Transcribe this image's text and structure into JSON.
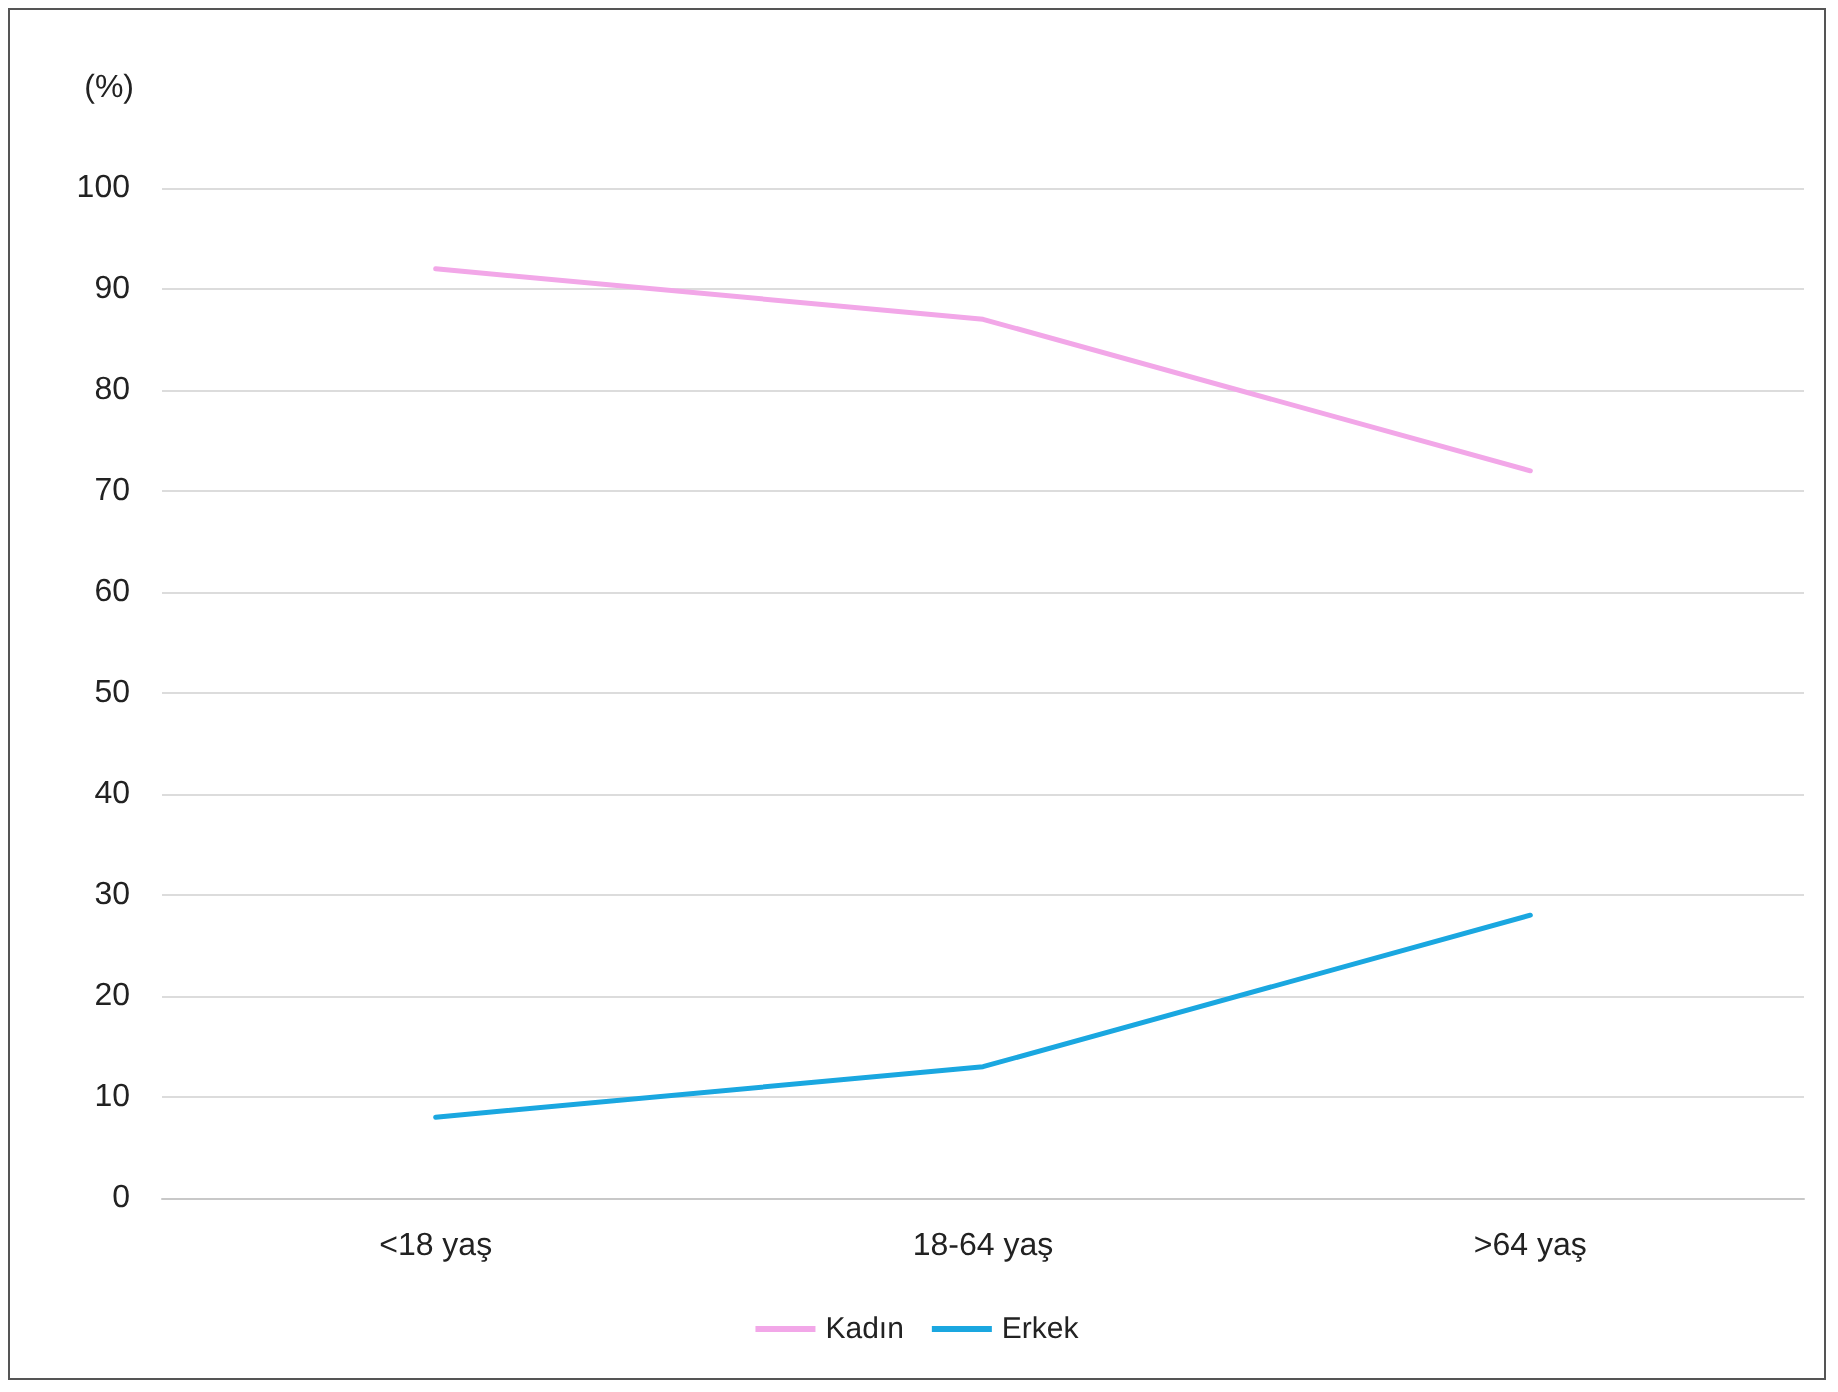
{
  "chart_data": {
    "type": "line",
    "ylabel": "(%)",
    "categories": [
      "<18 yaş",
      "18-64 yaş",
      ">64 yaş"
    ],
    "series": [
      {
        "name": "Kadın",
        "color": "#f2a7e8",
        "values": [
          92,
          87,
          72
        ]
      },
      {
        "name": "Erkek",
        "color": "#1aa7e0",
        "values": [
          8,
          13,
          28
        ]
      }
    ],
    "ylim": [
      0,
      100
    ],
    "yticks": [
      0,
      10,
      20,
      30,
      40,
      50,
      60,
      70,
      80,
      90,
      100
    ],
    "grid": "y",
    "legend": "bottom",
    "marker": "none",
    "line_style": "solid"
  }
}
